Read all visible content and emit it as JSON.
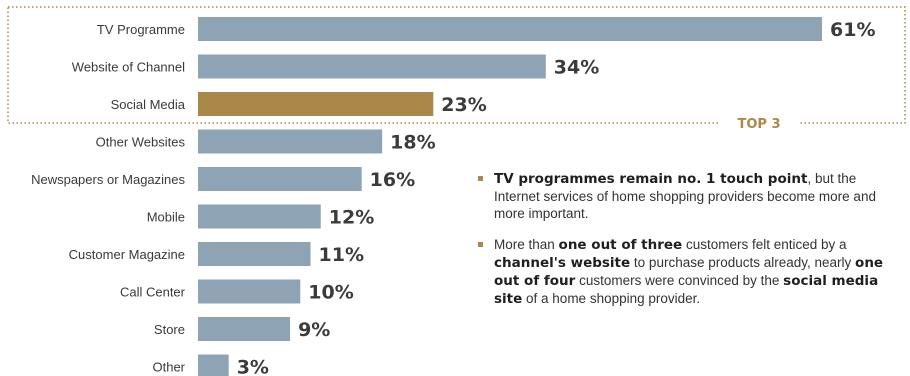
{
  "chart_data": {
    "type": "bar",
    "orientation": "horizontal",
    "categories": [
      "TV Programme",
      "Website of Channel",
      "Social Media",
      "Other Websites",
      "Newspapers or Magazines",
      "Mobile",
      "Customer Magazine",
      "Call Center",
      "Store",
      "Other"
    ],
    "values": [
      61,
      34,
      23,
      18,
      16,
      12,
      11,
      10,
      9,
      3
    ],
    "value_labels": [
      "61%",
      "34%",
      "23%",
      "18%",
      "16%",
      "12%",
      "11%",
      "10%",
      "9%",
      "3%"
    ],
    "highlight_index": 2,
    "bar_color": "#8ea3b3",
    "highlight_color": "#a9884a",
    "grid": false,
    "legend": "none",
    "top3_label": "TOP 3"
  },
  "notes": [
    {
      "parts": [
        {
          "text": "TV programmes remain no. 1 touch point",
          "bold": true
        },
        {
          "text": ", but the Internet services of home shopping providers become more and more important.",
          "bold": false
        }
      ]
    },
    {
      "parts": [
        {
          "text": "More than ",
          "bold": false
        },
        {
          "text": "one out of three",
          "bold": true
        },
        {
          "text": " customers felt enticed by a ",
          "bold": false
        },
        {
          "text": "channel's website",
          "bold": true
        },
        {
          "text": " to purchase products already, nearly ",
          "bold": false
        },
        {
          "text": "one out of four",
          "bold": true
        },
        {
          "text": " customers were convinced by the ",
          "bold": false
        },
        {
          "text": "social media site",
          "bold": true
        },
        {
          "text": " of a home shopping provider.",
          "bold": false
        }
      ]
    }
  ],
  "colors": {
    "accent": "#a9884a",
    "bar": "#8ea3b3",
    "text": "#333333"
  }
}
